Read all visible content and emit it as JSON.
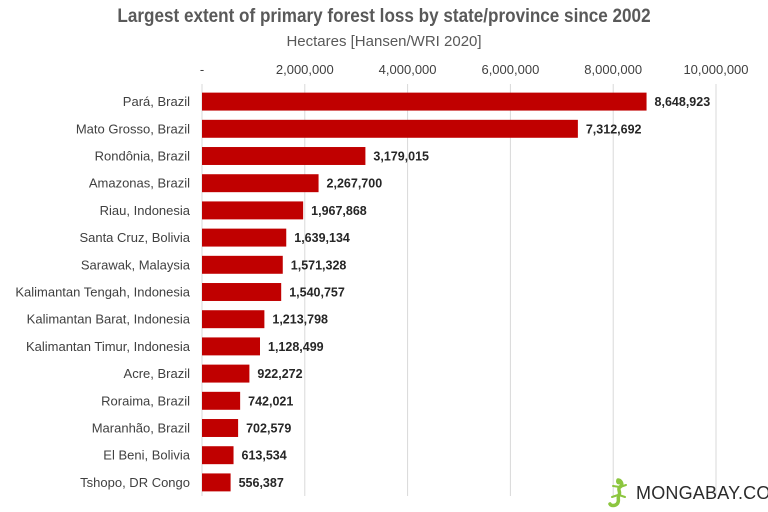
{
  "chart_data": {
    "type": "bar",
    "orientation": "horizontal",
    "title": "Largest extent of primary forest loss by state/province since 2002",
    "subtitle": "Hectares [Hansen/WRI 2020]",
    "categories": [
      "Pará, Brazil",
      "Mato Grosso, Brazil",
      "Rondônia, Brazil",
      "Amazonas, Brazil",
      "Riau, Indonesia",
      "Santa Cruz, Bolivia",
      "Sarawak, Malaysia",
      "Kalimantan Tengah, Indonesia",
      "Kalimantan Barat, Indonesia",
      "Kalimantan Timur, Indonesia",
      "Acre, Brazil",
      "Roraima, Brazil",
      "Maranhão, Brazil",
      "El Beni, Bolivia",
      "Tshopo, DR Congo"
    ],
    "values": [
      8648923,
      7312692,
      3179015,
      2267700,
      1967868,
      1639134,
      1571328,
      1540757,
      1213798,
      1128499,
      922272,
      742021,
      702579,
      613534,
      556387
    ],
    "value_labels": [
      "8,648,923",
      "7,312,692",
      "3,179,015",
      "2,267,700",
      "1,967,868",
      "1,639,134",
      "1,571,328",
      "1,540,757",
      "1,213,798",
      "1,128,499",
      "922,272",
      "742,021",
      "702,579",
      "613,534",
      "556,387"
    ],
    "xlim": [
      0,
      10000000
    ],
    "xticks": [
      0,
      2000000,
      4000000,
      6000000,
      8000000,
      10000000
    ],
    "xtick_labels": [
      "-",
      "2,000,000",
      "4,000,000",
      "6,000,000",
      "8,000,000",
      "10,000,000"
    ],
    "axis_position": "top",
    "grid": true,
    "bar_color": "#c00000",
    "grid_color": "#d9d9d9"
  },
  "logo": {
    "text": "MONGABAY.COM",
    "icon": "gecko-icon",
    "color": "#8cc63f"
  }
}
